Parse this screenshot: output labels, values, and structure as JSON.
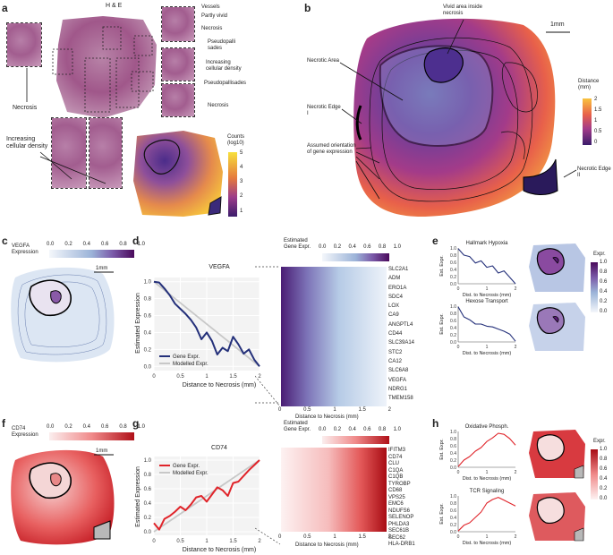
{
  "panels": {
    "a": {
      "label": "a",
      "title": "H & E",
      "annotations": [
        "Vessels",
        "Partly vivid",
        "Necrosis",
        "Pseudopalli sades",
        "Increasing cellular density",
        "Pseudopallisades",
        "Necrosis"
      ],
      "left_labels": [
        "Necrosis",
        "Increasing cellular density"
      ],
      "counts_legend": {
        "title": "Counts (log10)",
        "ticks": [
          "5",
          "4",
          "3",
          "2",
          "1"
        ]
      }
    },
    "b": {
      "label": "b",
      "scale": "1mm",
      "annotations": [
        "Vivid area inside necrosis",
        "Necrotic Area",
        "Necrotic Edge I",
        "Assumed orientation of gene expression",
        "Necrotic Edge II"
      ],
      "legend": {
        "title": "Distance (mm)",
        "ticks": [
          "2",
          "1.5",
          "1",
          "0.5",
          "0"
        ]
      }
    },
    "c": {
      "label": "c",
      "legend_title": "VEGFA Expression",
      "ticks": [
        "0.0",
        "0.2",
        "0.4",
        "0.6",
        "0.8",
        "1.0"
      ],
      "scale": "1mm"
    },
    "d": {
      "label": "d",
      "heatmap_title": "Estimated Gene Expr.",
      "heatmap_ticks": [
        "0.0",
        "0.2",
        "0.4",
        "0.6",
        "0.8",
        "1.0"
      ],
      "genes": [
        "SLC2A1",
        "ADM",
        "ERO1A",
        "SDC4",
        "LOX",
        "CA9",
        "ANGPTL4",
        "CD44",
        "SLC39A14",
        "STC2",
        "CA12",
        "SLC6A8",
        "VEGFA",
        "NDRG1",
        "TMEM158"
      ],
      "heatmap_xlabel": "Distance to Necrosis (mm)",
      "heatmap_xticks": [
        "0",
        "0.5",
        "1",
        "1.5",
        "2"
      ]
    },
    "e": {
      "label": "e",
      "legend_title": "Expr.",
      "legend_ticks": [
        "1.0",
        "0.8",
        "0.6",
        "0.4",
        "0.2",
        "0.0"
      ]
    },
    "f": {
      "label": "f",
      "legend_title": "CD74 Expression",
      "ticks": [
        "0.0",
        "0.2",
        "0.4",
        "0.6",
        "0.8",
        "1.0"
      ],
      "scale": "1mm"
    },
    "g": {
      "label": "g",
      "heatmap_title": "Estimated Gene Expr.",
      "heatmap_ticks": [
        "0.0",
        "0.2",
        "0.4",
        "0.6",
        "0.8",
        "1.0"
      ],
      "genes": [
        "IFITM3",
        "CD74",
        "CLU",
        "C1QA",
        "C1QB",
        "TYROBP",
        "CD68",
        "VPS25",
        "EMC6",
        "NDUFS6",
        "SELENOP",
        "PHLDA3",
        "SEC61B",
        "SEC62",
        "HLA-DRB1"
      ],
      "heatmap_xlabel": "Distance to Necrosis (mm)",
      "heatmap_xticks": [
        "0",
        "0.5",
        "1",
        "1.5",
        "2"
      ]
    },
    "h": {
      "label": "h",
      "legend_title": "Expr.",
      "legend_ticks": [
        "1.0",
        "0.8",
        "0.6",
        "0.4",
        "0.2",
        "0.0"
      ]
    }
  },
  "chart_data": [
    {
      "id": "d-line",
      "type": "line",
      "title": "VEGFA",
      "xlabel": "Distance to Necrosis (mm)",
      "ylabel": "Estimated Expression",
      "xlim": [
        0,
        2
      ],
      "ylim": [
        -0.05,
        1.05
      ],
      "xticks": [
        "0",
        "0.5",
        "1",
        "1.5",
        "2"
      ],
      "yticks": [
        "0.0",
        "0.2",
        "0.4",
        "0.6",
        "0.8",
        "1.0"
      ],
      "legend": [
        "Gene Expr.",
        "Modelled Expr."
      ],
      "series": [
        {
          "name": "Gene Expr.",
          "color": "#24307a",
          "x": [
            0,
            0.1,
            0.2,
            0.3,
            0.4,
            0.5,
            0.6,
            0.7,
            0.8,
            0.9,
            1.0,
            1.1,
            1.2,
            1.3,
            1.4,
            1.5,
            1.6,
            1.7,
            1.8,
            1.9,
            2.0
          ],
          "y": [
            1.0,
            0.99,
            0.92,
            0.84,
            0.74,
            0.68,
            0.62,
            0.55,
            0.46,
            0.32,
            0.4,
            0.3,
            0.14,
            0.22,
            0.18,
            0.35,
            0.26,
            0.15,
            0.2,
            0.08,
            0.0
          ]
        },
        {
          "name": "Modelled Expr.",
          "color": "#c8c8c8",
          "x": [
            0,
            2
          ],
          "y": [
            1.0,
            0.0
          ]
        }
      ]
    },
    {
      "id": "g-line",
      "type": "line",
      "title": "CD74",
      "xlabel": "Distance to Necrosis (mm)",
      "ylabel": "Estimated Expression",
      "xlim": [
        0,
        2
      ],
      "ylim": [
        -0.05,
        1.05
      ],
      "xticks": [
        "0",
        "0.5",
        "1",
        "1.5",
        "2"
      ],
      "yticks": [
        "0.0",
        "0.2",
        "0.4",
        "0.6",
        "0.8",
        "1.0"
      ],
      "legend": [
        "Gene Expr.",
        "Modelled Expr."
      ],
      "series": [
        {
          "name": "Gene Expr.",
          "color": "#e0242a",
          "x": [
            0,
            0.1,
            0.2,
            0.3,
            0.4,
            0.5,
            0.6,
            0.7,
            0.8,
            0.9,
            1.0,
            1.1,
            1.2,
            1.3,
            1.4,
            1.5,
            1.6,
            1.7,
            1.8,
            1.9,
            2.0
          ],
          "y": [
            0.12,
            0.03,
            0.18,
            0.22,
            0.28,
            0.35,
            0.3,
            0.38,
            0.48,
            0.5,
            0.42,
            0.52,
            0.62,
            0.58,
            0.5,
            0.68,
            0.7,
            0.78,
            0.86,
            0.93,
            1.0
          ]
        },
        {
          "name": "Modelled Expr.",
          "color": "#c8c8c8",
          "x": [
            0,
            2
          ],
          "y": [
            0.0,
            1.0
          ]
        }
      ]
    },
    {
      "id": "e-hypoxia",
      "type": "line",
      "title": "Hallmark Hypoxia",
      "xlabel": "Dist. to Necrosis (mm)",
      "ylabel": "Est. Expr.",
      "xlim": [
        0,
        2
      ],
      "ylim": [
        0,
        1
      ],
      "xticks": [
        "0",
        "1",
        "2"
      ],
      "yticks": [
        "0.0",
        "0.2",
        "0.4",
        "0.6",
        "0.8",
        "1.0"
      ],
      "series": [
        {
          "name": "Hallmark Hypoxia",
          "color": "#24307a",
          "x": [
            0,
            0.2,
            0.4,
            0.6,
            0.8,
            1.0,
            1.2,
            1.4,
            1.6,
            1.8,
            2.0
          ],
          "y": [
            0.98,
            0.8,
            0.76,
            0.58,
            0.64,
            0.46,
            0.5,
            0.3,
            0.36,
            0.18,
            0.0
          ]
        }
      ]
    },
    {
      "id": "e-hexose",
      "type": "line",
      "title": "Hexose Transport",
      "xlabel": "Dist. to Necrosis (mm)",
      "ylabel": "Est. Expr.",
      "xlim": [
        0,
        2
      ],
      "ylim": [
        0,
        1
      ],
      "xticks": [
        "0",
        "1",
        "2"
      ],
      "yticks": [
        "0.0",
        "0.2",
        "0.4",
        "0.6",
        "0.8",
        "1.0"
      ],
      "series": [
        {
          "name": "Hexose Transport",
          "color": "#24307a",
          "x": [
            0,
            0.2,
            0.4,
            0.6,
            0.8,
            1.0,
            1.2,
            1.4,
            1.6,
            1.8,
            2.0
          ],
          "y": [
            0.98,
            0.7,
            0.62,
            0.5,
            0.5,
            0.44,
            0.42,
            0.36,
            0.3,
            0.22,
            0.02
          ]
        }
      ]
    },
    {
      "id": "h-oxphos",
      "type": "line",
      "title": "Oxidative Phosph.",
      "xlabel": "Dist. to Necrosis (mm)",
      "ylabel": "Est. Expr.",
      "xlim": [
        0,
        2
      ],
      "ylim": [
        0,
        1
      ],
      "xticks": [
        "0",
        "1",
        "2"
      ],
      "yticks": [
        "0.0",
        "0.2",
        "0.4",
        "0.6",
        "0.8",
        "1.0"
      ],
      "series": [
        {
          "name": "Oxidative Phosph.",
          "color": "#e0242a",
          "x": [
            0,
            0.2,
            0.4,
            0.6,
            0.8,
            1.0,
            1.2,
            1.4,
            1.6,
            1.8,
            2.0
          ],
          "y": [
            0.02,
            0.2,
            0.3,
            0.45,
            0.55,
            0.72,
            0.82,
            0.95,
            0.92,
            0.8,
            0.62
          ]
        }
      ]
    },
    {
      "id": "h-tcr",
      "type": "line",
      "title": "TCR Signaling",
      "xlabel": "Dist. to Necrosis (mm)",
      "ylabel": "Est. Expr.",
      "xlim": [
        0,
        2
      ],
      "ylim": [
        0,
        1
      ],
      "xticks": [
        "0",
        "1",
        "2"
      ],
      "yticks": [
        "0.0",
        "0.2",
        "0.4",
        "0.6",
        "0.8",
        "1.0"
      ],
      "series": [
        {
          "name": "TCR Signaling",
          "color": "#e0242a",
          "x": [
            0,
            0.2,
            0.4,
            0.6,
            0.8,
            1.0,
            1.2,
            1.4,
            1.6,
            1.8,
            2.0
          ],
          "y": [
            0.02,
            0.18,
            0.25,
            0.4,
            0.55,
            0.8,
            0.9,
            0.96,
            0.88,
            0.8,
            0.72
          ]
        }
      ]
    }
  ],
  "colors": {
    "blue": "#24307a",
    "red": "#e0242a",
    "grey": "#c8c8c8",
    "purple": "#4a1a6b"
  }
}
